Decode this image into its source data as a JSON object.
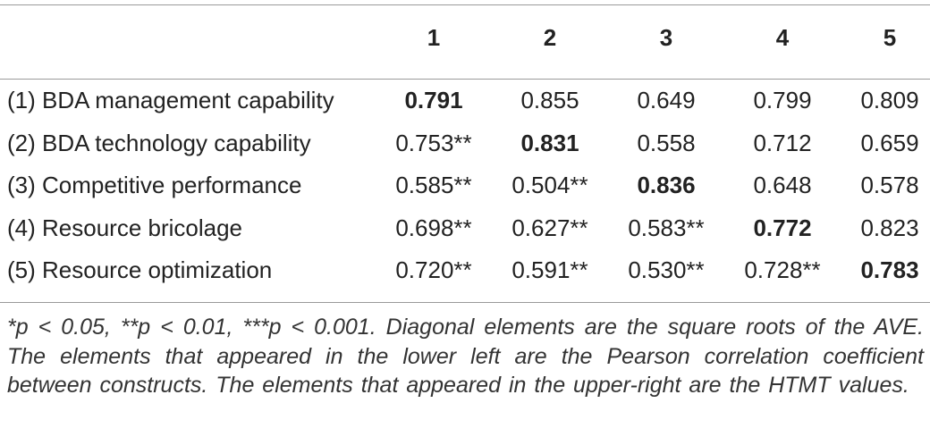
{
  "table": {
    "header": [
      "1",
      "2",
      "3",
      "4",
      "5"
    ],
    "rows": [
      [
        "(1) BDA management capability",
        "0.791",
        "0.855",
        "0.649",
        "0.799",
        "0.809"
      ],
      [
        "(2) BDA technology capability",
        "0.753**",
        "0.831",
        "0.558",
        "0.712",
        "0.659"
      ],
      [
        "(3) Competitive performance",
        "0.585**",
        "0.504**",
        "0.836",
        "0.648",
        "0.578"
      ],
      [
        "(4) Resource bricolage",
        "0.698**",
        "0.627**",
        "0.583**",
        "0.772",
        "0.823"
      ],
      [
        "(5) Resource optimization",
        "0.720**",
        "0.591**",
        "0.530**",
        "0.728**",
        "0.783"
      ]
    ]
  },
  "footnote": "*p < 0.05, **p < 0.01, ***p < 0.001. Diagonal elements are the square roots of the AVE. The elements that appeared in the lower left are the Pearson correlation coefficient between constructs. The elements that appeared in the upper-right are the HTMT values."
}
